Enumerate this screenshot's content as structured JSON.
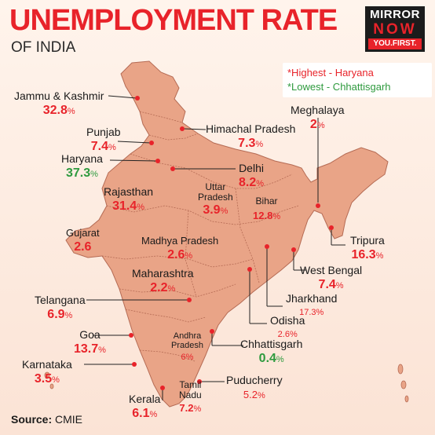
{
  "header": {
    "title": "UNEMPLOYMENT RATE",
    "subtitle": "OF INDIA"
  },
  "logo": {
    "line1": "MIRROR",
    "line2": "NOW",
    "line3": "YOU.FIRST."
  },
  "legend": {
    "highest": "*Highest - Haryana",
    "lowest": "*Lowest - Chhattisgarh"
  },
  "colors": {
    "accent_red": "#e8232a",
    "highlight_green": "#2e9a3e",
    "map_fill": "#e9a487",
    "map_stroke": "#b56b54"
  },
  "states": [
    {
      "id": "jk",
      "name": "Jammu & Kashmir",
      "value": "32.8",
      "unit": "%"
    },
    {
      "id": "pb",
      "name": "Punjab",
      "value": "7.4",
      "unit": "%"
    },
    {
      "id": "hr",
      "name": "Haryana",
      "value": "37.3",
      "unit": "%"
    },
    {
      "id": "hp",
      "name": "Himachal Pradesh",
      "value": "7.3",
      "unit": "%"
    },
    {
      "id": "dl",
      "name": "Delhi",
      "value": "8.2",
      "unit": "%"
    },
    {
      "id": "ml",
      "name": "Meghalaya",
      "value": "2",
      "unit": "%"
    },
    {
      "id": "rj",
      "name": "Rajasthan",
      "value": "31.4",
      "unit": "%"
    },
    {
      "id": "up",
      "name": "Uttar Pradesh",
      "name_line1": "Uttar",
      "name_line2": "Pradesh",
      "value": "3.9",
      "unit": "%"
    },
    {
      "id": "br",
      "name": "Bihar",
      "value": "12.8",
      "unit": "%"
    },
    {
      "id": "gj",
      "name": "Gujarat",
      "value": "2.6",
      "unit": ""
    },
    {
      "id": "mp",
      "name": "Madhya Pradesh",
      "value": "2.6",
      "unit": "%"
    },
    {
      "id": "tr",
      "name": "Tripura",
      "value": "16.3",
      "unit": "%"
    },
    {
      "id": "mh",
      "name": "Maharashtra",
      "value": "2.2",
      "unit": "%"
    },
    {
      "id": "wb",
      "name": "West Bengal",
      "value": "7.4",
      "unit": "%"
    },
    {
      "id": "jh",
      "name": "Jharkhand",
      "value": "17.3",
      "unit": "%"
    },
    {
      "id": "tg",
      "name": "Telangana",
      "value": "6.9",
      "unit": "%"
    },
    {
      "id": "od",
      "name": "Odisha",
      "value": "2.6",
      "unit": "%"
    },
    {
      "id": "ga",
      "name": "Goa",
      "value": "13.7",
      "unit": "%"
    },
    {
      "id": "ap",
      "name": "Andhra Pradesh",
      "name_line1": "Andhra",
      "name_line2": "Pradesh",
      "value": "6",
      "unit": "%"
    },
    {
      "id": "cg",
      "name": "Chhattisgarh",
      "value": "0.4",
      "unit": "%"
    },
    {
      "id": "ka",
      "name": "Karnataka",
      "value": "3.5",
      "unit": "%"
    },
    {
      "id": "tn",
      "name": "Tamil Nadu",
      "name_line1": "Tamil",
      "name_line2": "Nadu",
      "value": "7.2",
      "unit": "%"
    },
    {
      "id": "py",
      "name": "Puducherry",
      "value": "5.2",
      "unit": "%"
    },
    {
      "id": "kl",
      "name": "Kerala",
      "value": "6.1",
      "unit": "%"
    }
  ],
  "footer": {
    "source_label": "Source:",
    "source_value": "CMIE"
  }
}
